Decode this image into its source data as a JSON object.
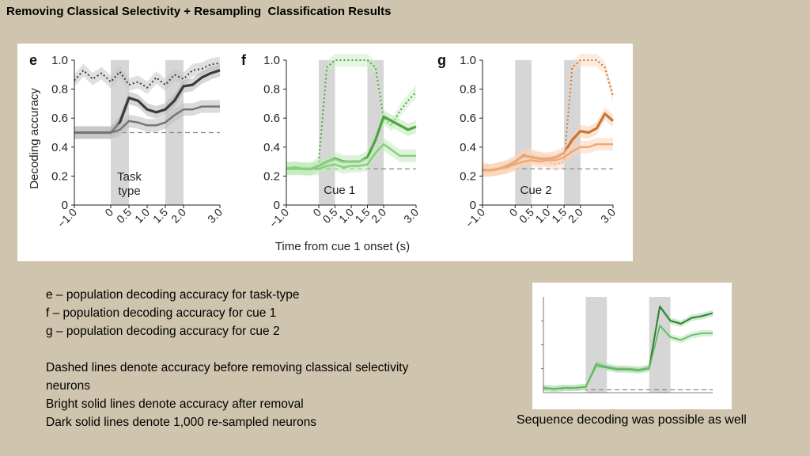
{
  "title": "Removing Classical Selectivity + Resampling  Classification Results",
  "figure": {
    "ylabel": "Decoding accuracy",
    "xlabel": "Time from cue 1 onset (s)",
    "xticks": [
      "−1.0",
      "0",
      "0.5",
      "1.0",
      "1.5",
      "2.0",
      "3.0"
    ],
    "panels": [
      {
        "letter": "e",
        "band_label": [
          "Task",
          "type"
        ],
        "yticks": [
          "0",
          "0.2",
          "0.4",
          "0.6",
          "0.8",
          "1.0"
        ]
      },
      {
        "letter": "f",
        "band_label": [
          "Cue 1"
        ],
        "yticks": [
          "0",
          "0.2",
          "0.4",
          "0.6",
          "0.8",
          "1.0"
        ]
      },
      {
        "letter": "g",
        "band_label": [
          "Cue 2"
        ],
        "yticks": [
          "0",
          "0.2",
          "0.4",
          "0.6",
          "0.8",
          "1.0"
        ]
      }
    ]
  },
  "chart_data": [
    {
      "type": "line",
      "panel": "e",
      "title": "",
      "xlabel": "Time from cue 1 onset (s)",
      "ylabel": "Decoding accuracy",
      "xlim": [
        -1.0,
        3.0
      ],
      "ylim": [
        0,
        1.0
      ],
      "chance": 0.5,
      "shaded_intervals": [
        [
          0,
          0.5
        ],
        [
          1.5,
          2.0
        ]
      ],
      "color": "#444444",
      "x": [
        -1.0,
        -0.75,
        -0.5,
        -0.25,
        0,
        0.25,
        0.5,
        0.75,
        1.0,
        1.25,
        1.5,
        1.75,
        2.0,
        2.25,
        2.5,
        2.75,
        3.0
      ],
      "series": [
        {
          "name": "before removal (dashed)",
          "values": [
            0.86,
            0.93,
            0.87,
            0.91,
            0.85,
            0.92,
            0.83,
            0.85,
            0.81,
            0.88,
            0.83,
            0.9,
            0.87,
            0.93,
            0.94,
            0.97,
            0.98
          ]
        },
        {
          "name": "re-sampled 1,000 neurons (dark)",
          "values": [
            0.5,
            0.5,
            0.5,
            0.5,
            0.5,
            0.57,
            0.74,
            0.72,
            0.66,
            0.64,
            0.66,
            0.72,
            0.82,
            0.83,
            0.88,
            0.91,
            0.93
          ]
        },
        {
          "name": "after removal (bright)",
          "values": [
            0.5,
            0.5,
            0.5,
            0.5,
            0.5,
            0.52,
            0.58,
            0.57,
            0.55,
            0.55,
            0.57,
            0.62,
            0.66,
            0.66,
            0.68,
            0.68,
            0.68
          ]
        }
      ]
    },
    {
      "type": "line",
      "panel": "f",
      "title": "",
      "xlabel": "Time from cue 1 onset (s)",
      "ylabel": "",
      "xlim": [
        -1.0,
        3.0
      ],
      "ylim": [
        0,
        1.0
      ],
      "chance": 0.25,
      "shaded_intervals": [
        [
          0,
          0.5
        ],
        [
          1.5,
          2.0
        ]
      ],
      "color": "#5ac24a",
      "x": [
        -1.0,
        -0.75,
        -0.5,
        -0.25,
        0,
        0.25,
        0.5,
        0.75,
        1.0,
        1.25,
        1.5,
        1.75,
        2.0,
        2.25,
        2.5,
        2.75,
        3.0
      ],
      "series": [
        {
          "name": "before removal (dashed)",
          "values": [
            0.25,
            0.25,
            0.25,
            0.24,
            0.3,
            0.95,
            1.0,
            1.0,
            1.0,
            1.0,
            1.0,
            0.95,
            0.6,
            0.55,
            0.65,
            0.72,
            0.78
          ]
        },
        {
          "name": "re-sampled 1,000 neurons (dark)",
          "values": [
            0.25,
            0.26,
            0.25,
            0.25,
            0.27,
            0.3,
            0.32,
            0.3,
            0.3,
            0.3,
            0.33,
            0.45,
            0.61,
            0.58,
            0.55,
            0.52,
            0.54
          ]
        },
        {
          "name": "after removal (bright)",
          "values": [
            0.25,
            0.25,
            0.25,
            0.25,
            0.25,
            0.27,
            0.28,
            0.26,
            0.27,
            0.27,
            0.28,
            0.36,
            0.42,
            0.38,
            0.34,
            0.34,
            0.34
          ]
        }
      ]
    },
    {
      "type": "line",
      "panel": "g",
      "title": "",
      "xlabel": "Time from cue 1 onset (s)",
      "ylabel": "",
      "xlim": [
        -1.0,
        3.0
      ],
      "ylim": [
        0,
        1.0
      ],
      "chance": 0.25,
      "shaded_intervals": [
        [
          0,
          0.5
        ],
        [
          1.5,
          2.0
        ]
      ],
      "color": "#ef8a3c",
      "x": [
        -1.0,
        -0.75,
        -0.5,
        -0.25,
        0,
        0.25,
        0.5,
        0.75,
        1.0,
        1.25,
        1.5,
        1.75,
        2.0,
        2.25,
        2.5,
        2.75,
        3.0
      ],
      "series": [
        {
          "name": "before removal (dashed)",
          "values": [
            0.25,
            0.24,
            0.25,
            0.26,
            0.28,
            0.35,
            0.34,
            0.33,
            0.3,
            0.28,
            0.3,
            0.95,
            1.0,
            1.0,
            1.0,
            0.95,
            0.75
          ]
        },
        {
          "name": "re-sampled 1,000 neurons (dark)",
          "values": [
            0.24,
            0.24,
            0.25,
            0.27,
            0.3,
            0.34,
            0.33,
            0.32,
            0.32,
            0.33,
            0.36,
            0.45,
            0.51,
            0.5,
            0.53,
            0.63,
            0.58
          ]
        },
        {
          "name": "after removal (bright)",
          "values": [
            0.24,
            0.24,
            0.25,
            0.26,
            0.28,
            0.3,
            0.31,
            0.3,
            0.31,
            0.31,
            0.33,
            0.37,
            0.4,
            0.4,
            0.42,
            0.42,
            0.42
          ]
        }
      ]
    },
    {
      "type": "line",
      "panel": "sequence",
      "title": "",
      "xlabel": "",
      "ylabel": "",
      "xlim": [
        -1.0,
        3.0
      ],
      "ylim": [
        0,
        1.0
      ],
      "chance": 0.03,
      "shaded_intervals": [
        [
          0,
          0.5
        ],
        [
          1.5,
          2.0
        ]
      ],
      "color": "#2e7d32",
      "x": [
        -1.0,
        -0.75,
        -0.5,
        -0.25,
        0,
        0.25,
        0.5,
        0.75,
        1.0,
        1.25,
        1.5,
        1.75,
        2.0,
        2.25,
        2.5,
        2.75,
        3.0
      ],
      "series": [
        {
          "name": "re-sampled 1,000 neurons (dark)",
          "values": [
            0.05,
            0.04,
            0.05,
            0.05,
            0.06,
            0.3,
            0.27,
            0.25,
            0.25,
            0.24,
            0.26,
            0.9,
            0.75,
            0.72,
            0.78,
            0.8,
            0.83
          ]
        },
        {
          "name": "after removal (bright)",
          "values": [
            0.05,
            0.04,
            0.05,
            0.05,
            0.06,
            0.28,
            0.26,
            0.24,
            0.24,
            0.23,
            0.25,
            0.7,
            0.58,
            0.55,
            0.6,
            0.62,
            0.62
          ]
        }
      ]
    }
  ],
  "legend": {
    "lines": [
      "e – population decoding accuracy for task-type",
      "f – population decoding accuracy for cue 1",
      "g – population decoding accuracy for cue 2",
      "Dashed lines denote accuracy before removing classical selectivity neurons",
      "Bright solid lines denote accuracy after removal",
      "Dark solid lines denote 1,000 re-sampled neurons"
    ]
  },
  "sequence_caption": "Sequence decoding was possible as well"
}
